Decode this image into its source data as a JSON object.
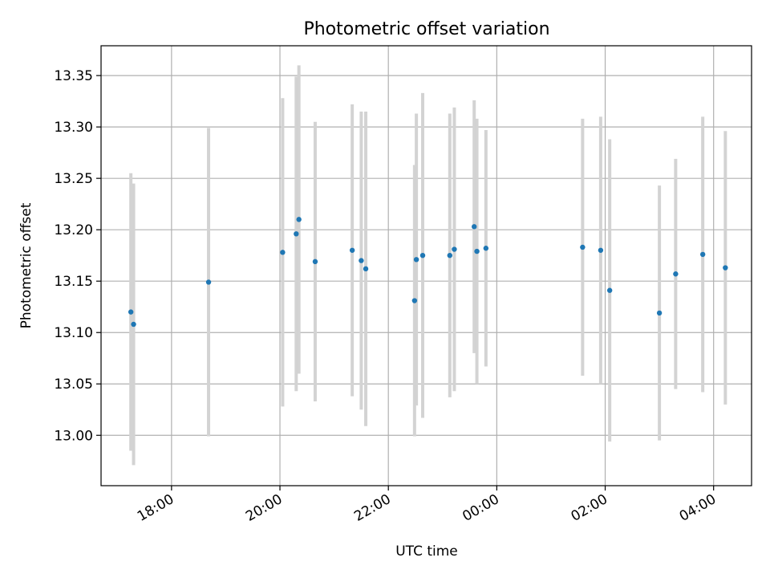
{
  "chart_data": {
    "type": "scatter",
    "title": "Photometric offset variation",
    "xlabel": "UTC time",
    "ylabel": "Photometric offset",
    "x_ticks": [
      "18:00",
      "20:00",
      "22:00",
      "00:00",
      "02:00",
      "04:00"
    ],
    "y_ticks": [
      "13.00",
      "13.05",
      "13.10",
      "13.15",
      "13.20",
      "13.25",
      "13.30",
      "13.35"
    ],
    "xlim_hours": [
      16.7,
      28.7
    ],
    "ylim": [
      12.951,
      13.379
    ],
    "grid": true,
    "series": [
      {
        "marker_color": "#1f77b4",
        "errorbar_color": "#d3d3d3",
        "points": [
          {
            "t": "17:15",
            "y": 13.12,
            "err": 0.135
          },
          {
            "t": "17:18",
            "y": 13.108,
            "err": 0.137
          },
          {
            "t": "18:41",
            "y": 13.149,
            "err": 0.15
          },
          {
            "t": "20:03",
            "y": 13.178,
            "err": 0.15
          },
          {
            "t": "20:18",
            "y": 13.196,
            "err": 0.153
          },
          {
            "t": "20:21",
            "y": 13.21,
            "err": 0.15
          },
          {
            "t": "20:39",
            "y": 13.169,
            "err": 0.136
          },
          {
            "t": "21:20",
            "y": 13.18,
            "err": 0.142
          },
          {
            "t": "21:30",
            "y": 13.17,
            "err": 0.145
          },
          {
            "t": "21:35",
            "y": 13.162,
            "err": 0.153
          },
          {
            "t": "22:29",
            "y": 13.131,
            "err": 0.132
          },
          {
            "t": "22:31",
            "y": 13.171,
            "err": 0.142
          },
          {
            "t": "22:38",
            "y": 13.175,
            "err": 0.158
          },
          {
            "t": "23:08",
            "y": 13.175,
            "err": 0.138
          },
          {
            "t": "23:13",
            "y": 13.181,
            "err": 0.138
          },
          {
            "t": "23:35",
            "y": 13.203,
            "err": 0.123
          },
          {
            "t": "23:38",
            "y": 13.179,
            "err": 0.129
          },
          {
            "t": "23:48",
            "y": 13.182,
            "err": 0.115
          },
          {
            "t": "01:35",
            "y": 13.183,
            "err": 0.125
          },
          {
            "t": "01:55",
            "y": 13.18,
            "err": 0.13
          },
          {
            "t": "02:05",
            "y": 13.141,
            "err": 0.147
          },
          {
            "t": "03:00",
            "y": 13.119,
            "err": 0.124
          },
          {
            "t": "03:18",
            "y": 13.157,
            "err": 0.112
          },
          {
            "t": "03:48",
            "y": 13.176,
            "err": 0.134
          },
          {
            "t": "04:13",
            "y": 13.163,
            "err": 0.133
          }
        ]
      }
    ]
  }
}
